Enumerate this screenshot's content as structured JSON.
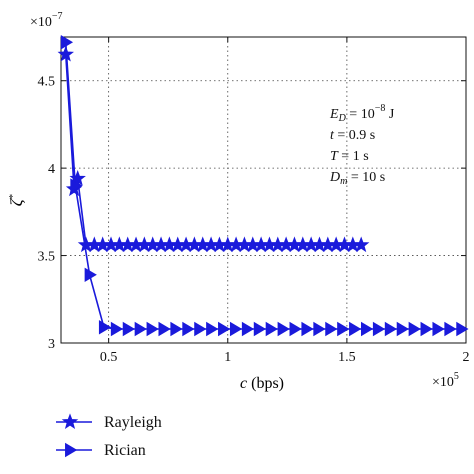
{
  "chart_data": {
    "type": "line",
    "xlabel": "c (bps)",
    "ylabel": "ζ*",
    "x_multiplier_label": "×10",
    "x_multiplier_exp": "5",
    "y_multiplier_label": "×10",
    "y_multiplier_exp": "−7",
    "xlim": [
      0.3,
      2.0
    ],
    "ylim": [
      3.0,
      4.75
    ],
    "xticks": [
      0.5,
      1.0,
      1.5,
      2.0
    ],
    "xtick_labels": [
      "0.5",
      "1",
      "1.5",
      "2"
    ],
    "yticks": [
      3.0,
      3.5,
      4.0,
      4.5
    ],
    "ytick_labels": [
      "3",
      "3.5",
      "4",
      "4.5"
    ],
    "grid": true,
    "legend_position": "bottom-left, below the axes",
    "annotation_lines": [
      [
        "E",
        "D",
        " = 10",
        "−8",
        " J"
      ],
      [
        "t",
        "",
        " = 0.9 s",
        "",
        ""
      ],
      [
        "T",
        "",
        " = 1 s",
        "",
        ""
      ],
      [
        "D",
        "m",
        " = 10 s",
        "",
        ""
      ]
    ],
    "series": [
      {
        "name": "Rayleigh",
        "marker": "star",
        "color": "#1a1adb",
        "x": [
          0.32,
          0.355,
          0.37,
          0.405,
          0.44,
          0.475,
          0.51,
          0.545,
          0.58,
          0.615,
          0.65,
          0.685,
          0.72,
          0.755,
          0.79,
          0.825,
          0.86,
          0.895,
          0.93,
          0.965,
          1.0,
          1.035,
          1.07,
          1.105,
          1.14,
          1.175,
          1.21,
          1.245,
          1.28,
          1.315,
          1.35,
          1.385,
          1.42,
          1.455,
          1.49,
          1.525,
          1.56
        ],
        "y": [
          4.65,
          3.88,
          3.94,
          3.56,
          3.56,
          3.56,
          3.56,
          3.56,
          3.56,
          3.56,
          3.56,
          3.56,
          3.56,
          3.56,
          3.56,
          3.56,
          3.56,
          3.56,
          3.56,
          3.56,
          3.56,
          3.56,
          3.56,
          3.56,
          3.56,
          3.56,
          3.56,
          3.56,
          3.56,
          3.56,
          3.56,
          3.56,
          3.56,
          3.56,
          3.56,
          3.56,
          3.56
        ]
      },
      {
        "name": "Rician",
        "marker": "triangle-right",
        "color": "#1a1adb",
        "x": [
          0.32,
          0.36,
          0.42,
          0.48,
          0.53,
          0.58,
          0.63,
          0.68,
          0.73,
          0.78,
          0.83,
          0.88,
          0.93,
          0.98,
          1.03,
          1.08,
          1.13,
          1.18,
          1.23,
          1.28,
          1.33,
          1.38,
          1.43,
          1.48,
          1.53,
          1.58,
          1.63,
          1.68,
          1.73,
          1.78,
          1.83,
          1.88,
          1.93,
          1.98
        ],
        "y": [
          4.72,
          3.9,
          3.39,
          3.09,
          3.08,
          3.08,
          3.08,
          3.08,
          3.08,
          3.08,
          3.08,
          3.08,
          3.08,
          3.08,
          3.08,
          3.08,
          3.08,
          3.08,
          3.08,
          3.08,
          3.08,
          3.08,
          3.08,
          3.08,
          3.08,
          3.08,
          3.08,
          3.08,
          3.08,
          3.08,
          3.08,
          3.08,
          3.08,
          3.08
        ]
      }
    ]
  }
}
